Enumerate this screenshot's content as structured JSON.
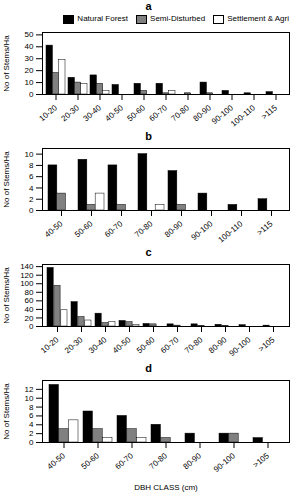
{
  "chart_data": [
    {
      "type": "bar",
      "title": "a",
      "categories": [
        "10-20",
        "20-30",
        "30-40",
        "40-50",
        "50-60",
        "60-70",
        "70-80",
        "80-90",
        "90-100",
        "100-110",
        ">115"
      ],
      "series": [
        {
          "name": "Natural Forest",
          "color": "#000000",
          "values": [
            41,
            14,
            16,
            8,
            9,
            9,
            0,
            10,
            3,
            1,
            2
          ]
        },
        {
          "name": "Semi-Disturbed",
          "color": "#808080",
          "values": [
            18,
            10,
            9,
            0,
            3,
            1,
            1,
            1,
            0,
            0,
            0
          ]
        },
        {
          "name": "Settlement & Agri",
          "color": "#ffffff",
          "values": [
            29,
            9,
            3,
            0,
            0,
            3,
            0,
            0,
            0,
            0,
            0
          ]
        }
      ],
      "ylabel": "No of Stems/Ha",
      "ylim": [
        0,
        52
      ],
      "yticks": [
        0,
        10,
        20,
        30,
        40,
        50
      ],
      "grid": false,
      "legend": "upper right"
    },
    {
      "type": "bar",
      "title": "b",
      "categories": [
        "40-50",
        "50-60",
        "60-70",
        "70-80",
        "80-90",
        "90-100",
        "100-110",
        ">115"
      ],
      "series": [
        {
          "name": "Natural Forest",
          "color": "#000000",
          "values": [
            8,
            9,
            8,
            10,
            7,
            3,
            1,
            2
          ]
        },
        {
          "name": "Semi-Disturbed",
          "color": "#808080",
          "values": [
            3,
            1,
            1,
            0,
            1,
            0,
            0,
            0
          ]
        },
        {
          "name": "Settlement & Agri",
          "color": "#ffffff",
          "values": [
            0,
            3,
            0,
            1,
            0,
            0,
            0,
            0
          ]
        }
      ],
      "ylabel": "No of Stems/Ha",
      "ylim": [
        0,
        11
      ],
      "yticks": [
        0,
        2,
        4,
        6,
        8,
        10
      ],
      "grid": false
    },
    {
      "type": "bar",
      "title": "c",
      "categories": [
        "10-20",
        "20-30",
        "30-40",
        "40-50",
        "50-60",
        "60-70",
        "70-80",
        "80-90",
        "90-100",
        ">105"
      ],
      "series": [
        {
          "name": "Natural Forest",
          "color": "#000000",
          "values": [
            137,
            57,
            30,
            13,
            6,
            5,
            5,
            4,
            3,
            2
          ]
        },
        {
          "name": "Semi-Disturbed",
          "color": "#808080",
          "values": [
            95,
            22,
            8,
            10,
            5,
            2,
            1,
            1,
            0,
            0
          ]
        },
        {
          "name": "Settlement & Agri",
          "color": "#ffffff",
          "values": [
            38,
            14,
            10,
            3,
            0,
            0,
            0,
            0,
            0,
            0
          ]
        }
      ],
      "ylabel": "No of Stems/Ha",
      "ylim": [
        0,
        145
      ],
      "yticks": [
        0,
        20,
        40,
        60,
        80,
        100,
        120,
        140
      ],
      "grid": false
    },
    {
      "type": "bar",
      "title": "d",
      "categories": [
        "40-50",
        "50-60",
        "60-70",
        "70-80",
        "80-90",
        "90-100",
        ">105"
      ],
      "series": [
        {
          "name": "Natural Forest",
          "color": "#000000",
          "values": [
            13,
            7,
            6,
            4,
            2,
            2,
            1
          ]
        },
        {
          "name": "Semi-Disturbed",
          "color": "#808080",
          "values": [
            3,
            3,
            3,
            1,
            0,
            2,
            0
          ]
        },
        {
          "name": "Settlement & Agri",
          "color": "#ffffff",
          "values": [
            5,
            1,
            1,
            0,
            0,
            0,
            0
          ]
        }
      ],
      "ylabel": "No of Stems/Ha",
      "ylim": [
        0,
        14
      ],
      "yticks": [
        0,
        2,
        4,
        6,
        8,
        10,
        12
      ],
      "xlabel": "DBH CLASS (cm)",
      "grid": false
    }
  ]
}
